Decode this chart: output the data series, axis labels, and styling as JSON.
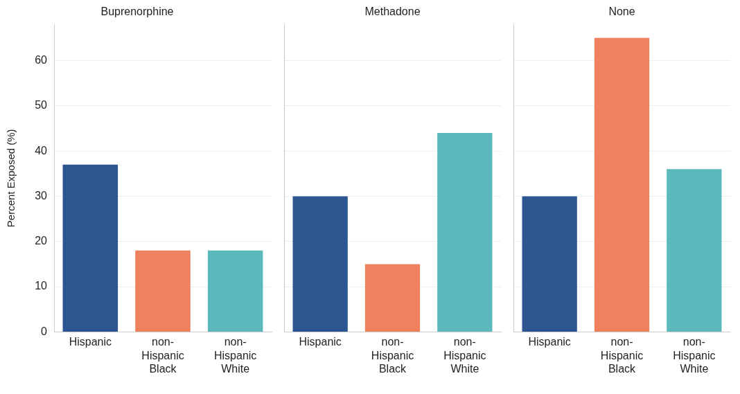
{
  "chart_data": [
    {
      "type": "bar",
      "title": "Buprenorphine",
      "ylabel": "Percent Exposed (%)",
      "categories": [
        "Hispanic",
        "non-Hispanic Black",
        "non-Hispanic White"
      ],
      "values": [
        37,
        18,
        18
      ],
      "colors": [
        "#2b5690",
        "#ef815e",
        "#5bb8bb"
      ],
      "ylim": [
        0,
        68
      ],
      "yticks": [
        0,
        10,
        20,
        30,
        40,
        50,
        60
      ],
      "grid": "y",
      "legend": false
    },
    {
      "type": "bar",
      "title": "Methadone",
      "categories": [
        "Hispanic",
        "non-Hispanic Black",
        "non-Hispanic White"
      ],
      "values": [
        30,
        15,
        44
      ],
      "colors": [
        "#2b5690",
        "#ef815e",
        "#5bb8bb"
      ],
      "ylim": [
        0,
        68
      ],
      "yticks": [
        0,
        10,
        20,
        30,
        40,
        50,
        60
      ],
      "grid": "y",
      "legend": false,
      "tick_labels": "x"
    },
    {
      "type": "bar",
      "title": "None",
      "categories": [
        "Hispanic",
        "non-Hispanic Black",
        "non-Hispanic White"
      ],
      "values": [
        30,
        65,
        36
      ],
      "colors": [
        "#2b5690",
        "#ef815e",
        "#5bb8bb"
      ],
      "ylim": [
        0,
        68
      ],
      "yticks": [
        0,
        10,
        20,
        30,
        40,
        50,
        60
      ],
      "grid": "y",
      "legend": false,
      "tick_labels": "x"
    }
  ]
}
